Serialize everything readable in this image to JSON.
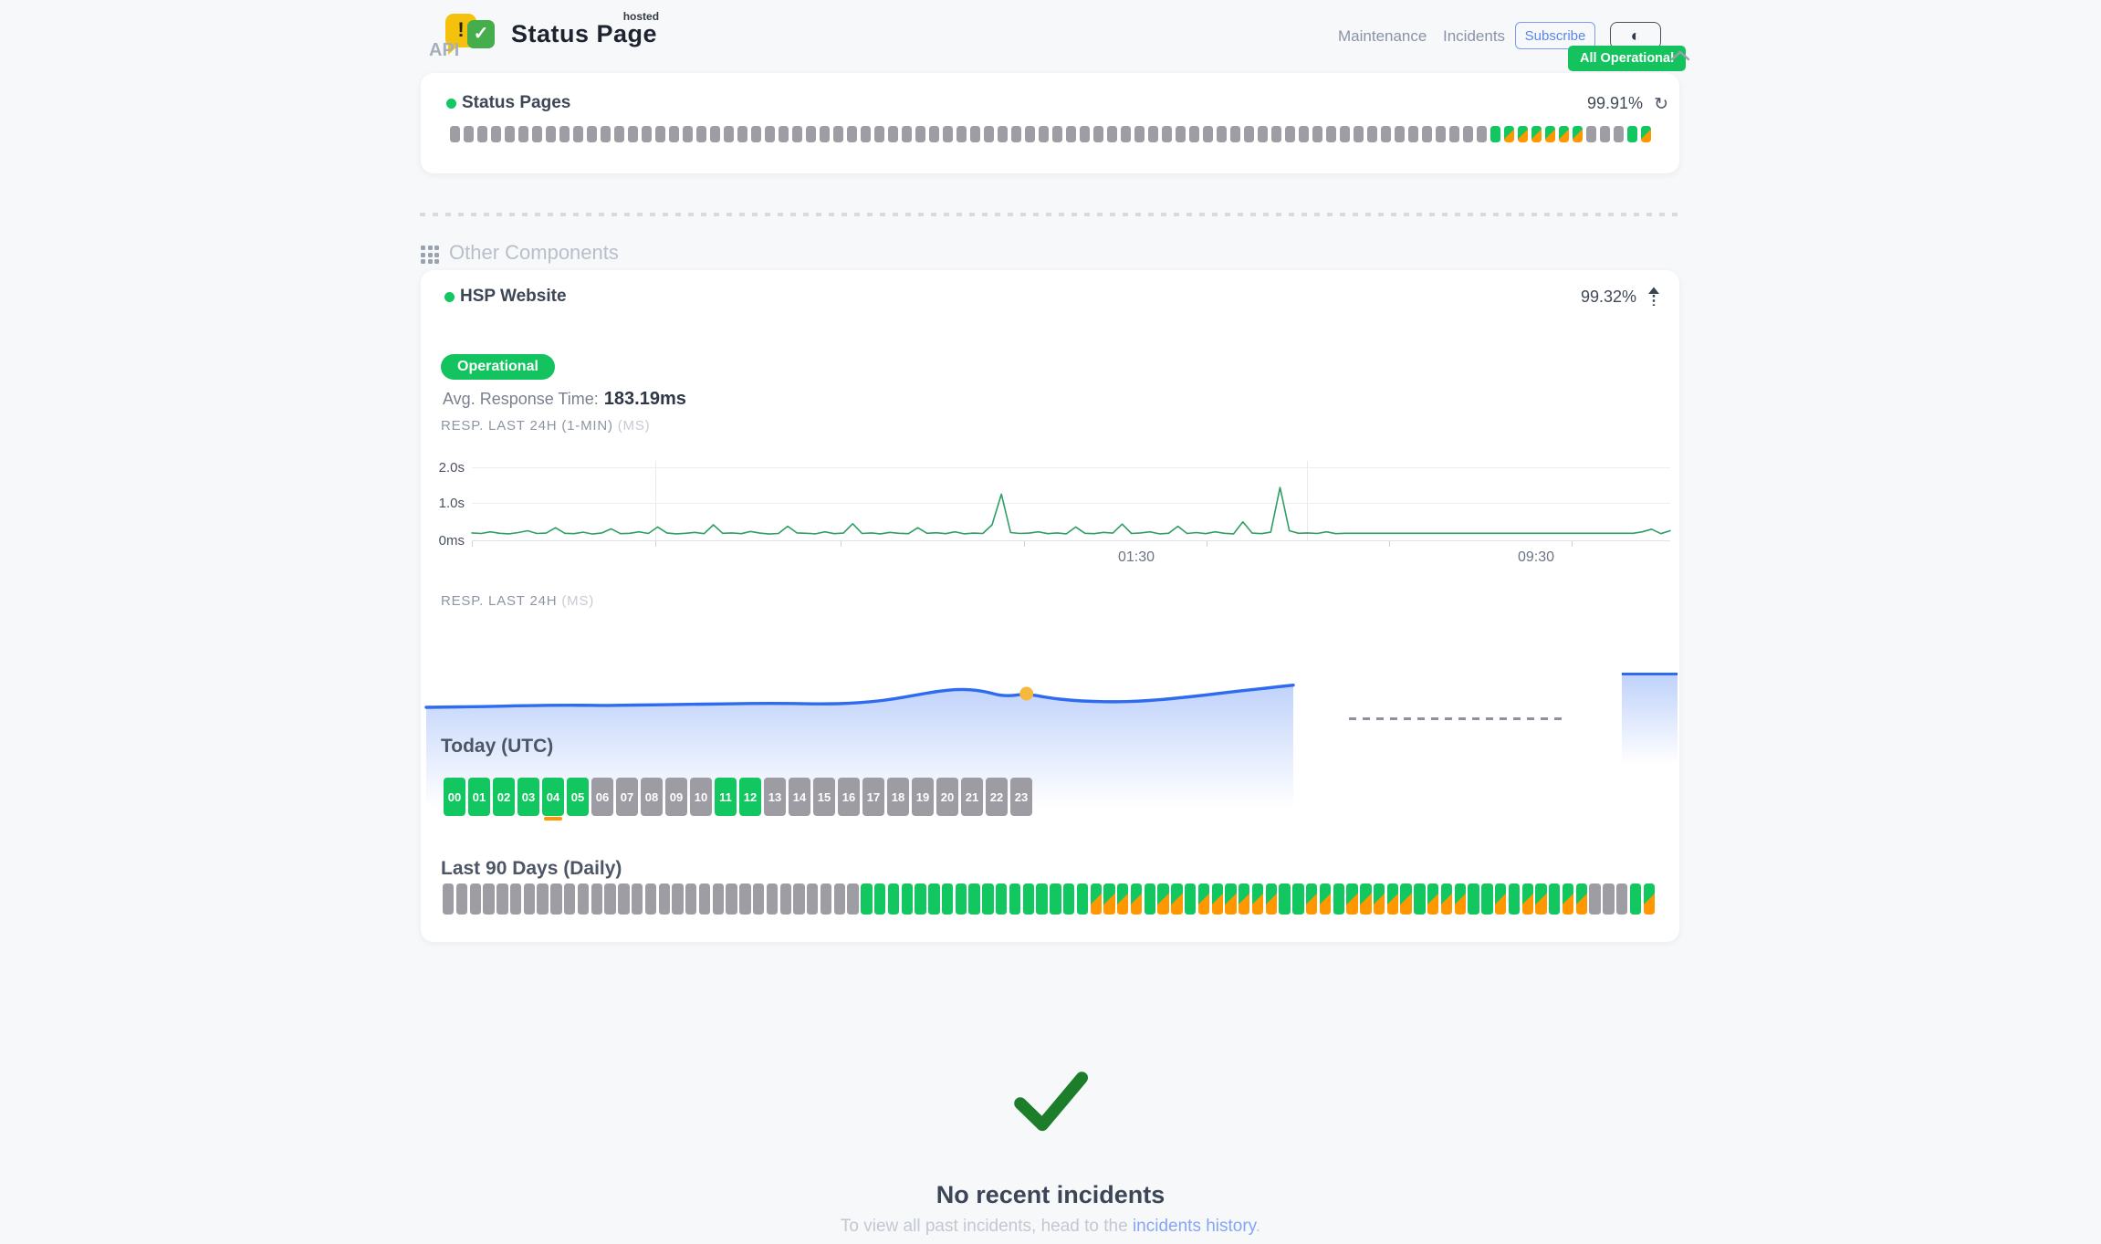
{
  "header": {
    "logo": {
      "title": "Status Page",
      "superscript": "hosted",
      "warn_glyph": "!",
      "check_glyph": "✓"
    },
    "nav": [
      {
        "label": "Maintenance"
      },
      {
        "label": "Incidents"
      }
    ],
    "subscribe_label": "Subscribe",
    "theme_icon": "◐",
    "status_badge": "All Operational"
  },
  "api_section": {
    "title": "API",
    "component": {
      "name": "Status Pages",
      "uptime": "99.91%",
      "refresh_icon": "↻",
      "bars": "ggggggggggggggggggggggggggggggggggggggggggggggggggggggggggggggggggggggggggggGMMMMMMgggGM"
    }
  },
  "other_components": {
    "title": "Other Components",
    "component": {
      "name": "HSP Website",
      "uptime": "99.32%",
      "status": "Operational",
      "avg_label": "Avg. Response Time:",
      "avg_value": "183.19ms",
      "resp_24h_min_label": "RESP. LAST 24H (1-MIN)",
      "resp_24h_min_unit": "(MS)",
      "resp_24h_label": "RESP. LAST 24H",
      "resp_24h_unit": "(MS)"
    }
  },
  "chart_data": [
    {
      "type": "line",
      "title": "RESP. LAST 24H (1-MIN)",
      "unit": "ms",
      "ylabels": [
        "2.0s",
        "1.0s",
        "0ms"
      ],
      "ylim": [
        0,
        2000
      ],
      "xticks": [
        "01:30",
        "09:30"
      ],
      "legend": "none",
      "grid": "light",
      "line_color": "#2f9e63",
      "values_ms": [
        200,
        185,
        230,
        190,
        175,
        210,
        260,
        185,
        195,
        340,
        190,
        180,
        220,
        170,
        200,
        310,
        180,
        190,
        230,
        185,
        360,
        200,
        175,
        190,
        215,
        180,
        420,
        190,
        200,
        180,
        240,
        195,
        170,
        185,
        380,
        200,
        190,
        175,
        230,
        180,
        195,
        450,
        185,
        200,
        175,
        215,
        190,
        180,
        340,
        190,
        205,
        180,
        230,
        175,
        195,
        185,
        420,
        1250,
        210,
        185,
        195,
        230,
        180,
        200,
        175,
        360,
        190,
        180,
        215,
        195,
        440,
        185,
        200,
        230,
        175,
        190,
        380,
        185,
        210,
        180,
        230,
        190,
        175,
        500,
        195,
        180,
        220,
        1430,
        260,
        190,
        200,
        185,
        230,
        180,
        190,
        190,
        190,
        190,
        190,
        190,
        190,
        190,
        190,
        190,
        190,
        190,
        190,
        190,
        190,
        190,
        190,
        190,
        190,
        190,
        190,
        190,
        190,
        190,
        190,
        190,
        190,
        190,
        190,
        190,
        190,
        190,
        230,
        300,
        180,
        260
      ]
    },
    {
      "type": "area",
      "title": "RESP. LAST 24H",
      "unit": "ms",
      "line_color": "#2e6bf0",
      "marker_color": "#f5b940",
      "marker_index": 27,
      "has_data_gap": true,
      "tail_value_ms": 280,
      "values_ms": [
        165,
        166,
        167,
        168,
        170,
        171,
        172,
        172,
        171,
        172,
        173,
        174,
        175,
        176,
        177,
        178,
        178,
        177,
        176,
        178,
        183,
        192,
        205,
        218,
        225,
        220,
        200,
        210,
        196,
        188,
        184,
        183,
        185,
        190,
        197,
        205,
        214,
        222,
        230,
        238
      ]
    }
  ],
  "today": {
    "title": "Today (UTC)",
    "hours": [
      {
        "label": "00",
        "status": "up"
      },
      {
        "label": "01",
        "status": "up"
      },
      {
        "label": "02",
        "status": "up"
      },
      {
        "label": "03",
        "status": "up"
      },
      {
        "label": "04",
        "status": "up-degraded"
      },
      {
        "label": "05",
        "status": "up"
      },
      {
        "label": "06",
        "status": "idle"
      },
      {
        "label": "07",
        "status": "idle"
      },
      {
        "label": "08",
        "status": "idle"
      },
      {
        "label": "09",
        "status": "idle"
      },
      {
        "label": "10",
        "status": "idle"
      },
      {
        "label": "11",
        "status": "up"
      },
      {
        "label": "12",
        "status": "up"
      },
      {
        "label": "13",
        "status": "idle"
      },
      {
        "label": "14",
        "status": "idle"
      },
      {
        "label": "15",
        "status": "idle"
      },
      {
        "label": "16",
        "status": "idle"
      },
      {
        "label": "17",
        "status": "idle"
      },
      {
        "label": "18",
        "status": "idle"
      },
      {
        "label": "19",
        "status": "idle"
      },
      {
        "label": "20",
        "status": "idle"
      },
      {
        "label": "21",
        "status": "idle"
      },
      {
        "label": "22",
        "status": "idle"
      },
      {
        "label": "23",
        "status": "idle"
      }
    ]
  },
  "last90": {
    "title": "Last 90 Days (Daily)",
    "bars": "gggggggggggggggggggggggggggggggGGGGGGGGGGGGGGGGGMMMMGMMGMMMMMMGGMMGMMMMMGMMMGGMGMMGMMgggGM"
  },
  "incidents": {
    "title": "No recent incidents",
    "subtitle_prefix": "To view all past incidents, head to the ",
    "link_label": "incidents history",
    "subtitle_suffix": "."
  },
  "colors": {
    "green": "#12c75f",
    "orange": "#ff9800",
    "gray_bar": "#9d9da3",
    "badge_green": "#15c35e",
    "accent_blue": "#5b87ea",
    "chart_blue": "#2e6bf0",
    "check_green": "#1c7e2b",
    "background": "#f7f8fa"
  }
}
